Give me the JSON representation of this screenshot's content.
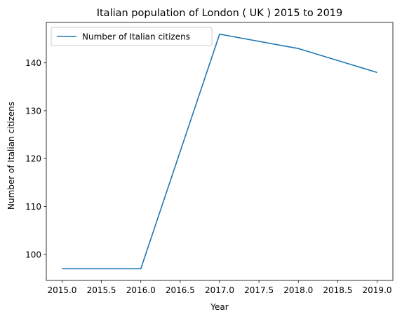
{
  "chart_data": {
    "type": "line",
    "title": "Italian population of London ( UK ) 2015 to 2019",
    "xlabel": "Year",
    "ylabel": "Number of Italian citizens",
    "x": [
      2015,
      2016,
      2017,
      2018,
      2019
    ],
    "series": [
      {
        "name": "Number of Italian citizens",
        "values": [
          97,
          97,
          146,
          143,
          138
        ],
        "color": "#1f77b4"
      }
    ],
    "xlim": [
      2014.8,
      2019.2
    ],
    "ylim": [
      94.55,
      148.45
    ],
    "x_ticks": [
      2015.0,
      2015.5,
      2016.0,
      2016.5,
      2017.0,
      2017.5,
      2018.0,
      2018.5,
      2019.0
    ],
    "x_tick_labels": [
      "2015.0",
      "2015.5",
      "2016.0",
      "2016.5",
      "2017.0",
      "2017.5",
      "2018.0",
      "2018.5",
      "2019.0"
    ],
    "y_ticks": [
      100,
      110,
      120,
      130,
      140
    ],
    "y_tick_labels": [
      "100",
      "110",
      "120",
      "130",
      "140"
    ],
    "legend_position": "top-left",
    "grid": false
  }
}
